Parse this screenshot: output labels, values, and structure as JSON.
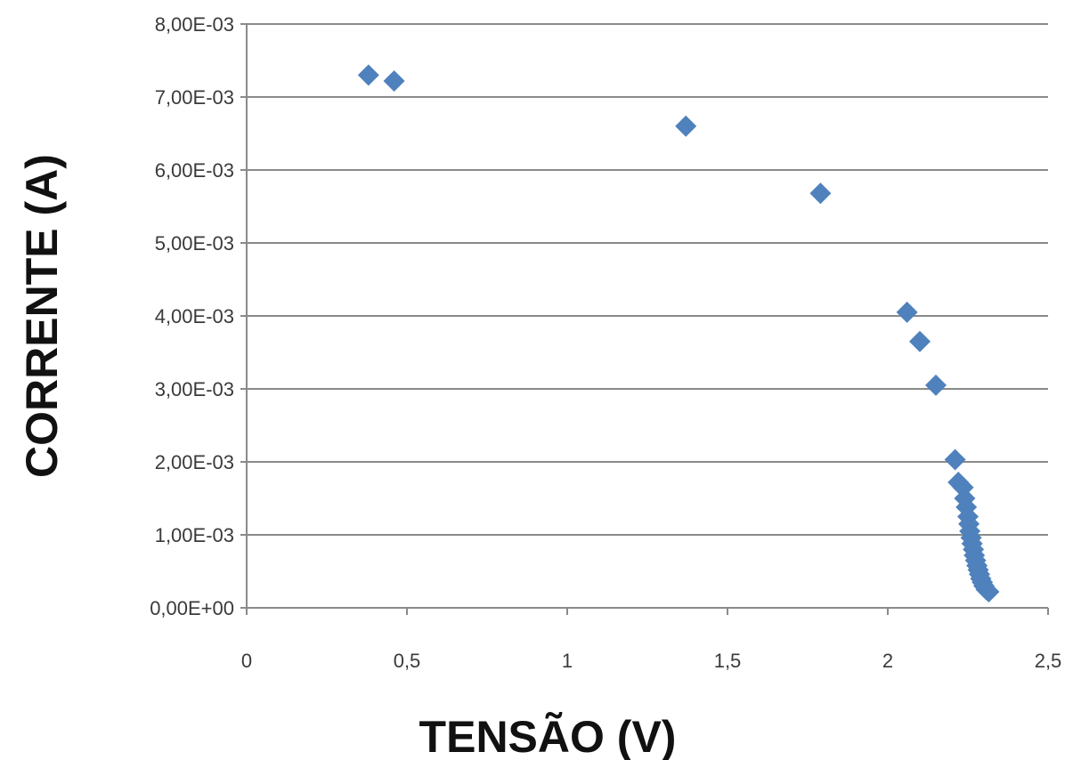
{
  "chart_data": {
    "type": "scatter",
    "title": "",
    "xlabel": "TENSÃO (V)",
    "ylabel": "CORRENTE (A)",
    "xlim": [
      0,
      2.5
    ],
    "ylim": [
      0,
      0.008
    ],
    "x_ticks": [
      0,
      0.5,
      1,
      1.5,
      2,
      2.5
    ],
    "x_tick_labels": [
      "0",
      "0,5",
      "1",
      "1,5",
      "2",
      "2,5"
    ],
    "y_ticks": [
      0,
      0.001,
      0.002,
      0.003,
      0.004,
      0.005,
      0.006,
      0.007,
      0.008
    ],
    "y_tick_labels": [
      "0,00E+00",
      "1,00E-03",
      "2,00E-03",
      "3,00E-03",
      "4,00E-03",
      "5,00E-03",
      "6,00E-03",
      "7,00E-03",
      "8,00E-03"
    ],
    "grid": "horizontal",
    "legend": "none",
    "marker": "diamond",
    "series": [
      {
        "color": "#4f81bd",
        "points": [
          {
            "x": 0.38,
            "y": 0.0073
          },
          {
            "x": 0.46,
            "y": 0.00722
          },
          {
            "x": 1.37,
            "y": 0.0066
          },
          {
            "x": 1.79,
            "y": 0.00568
          },
          {
            "x": 2.06,
            "y": 0.00405
          },
          {
            "x": 2.1,
            "y": 0.00365
          },
          {
            "x": 2.15,
            "y": 0.00305
          },
          {
            "x": 2.21,
            "y": 0.00203
          },
          {
            "x": 2.22,
            "y": 0.00172
          },
          {
            "x": 2.235,
            "y": 0.00165
          },
          {
            "x": 2.24,
            "y": 0.0015
          },
          {
            "x": 2.245,
            "y": 0.00138
          },
          {
            "x": 2.25,
            "y": 0.00125
          },
          {
            "x": 2.253,
            "y": 0.00115
          },
          {
            "x": 2.256,
            "y": 0.00105
          },
          {
            "x": 2.26,
            "y": 0.00096
          },
          {
            "x": 2.263,
            "y": 0.00088
          },
          {
            "x": 2.267,
            "y": 0.0008
          },
          {
            "x": 2.27,
            "y": 0.00072
          },
          {
            "x": 2.274,
            "y": 0.00065
          },
          {
            "x": 2.278,
            "y": 0.00058
          },
          {
            "x": 2.282,
            "y": 0.00052
          },
          {
            "x": 2.286,
            "y": 0.00046
          },
          {
            "x": 2.29,
            "y": 0.0004
          },
          {
            "x": 2.295,
            "y": 0.00035
          },
          {
            "x": 2.3,
            "y": 0.0003
          },
          {
            "x": 2.307,
            "y": 0.00025
          },
          {
            "x": 2.315,
            "y": 0.00022
          }
        ]
      }
    ]
  }
}
